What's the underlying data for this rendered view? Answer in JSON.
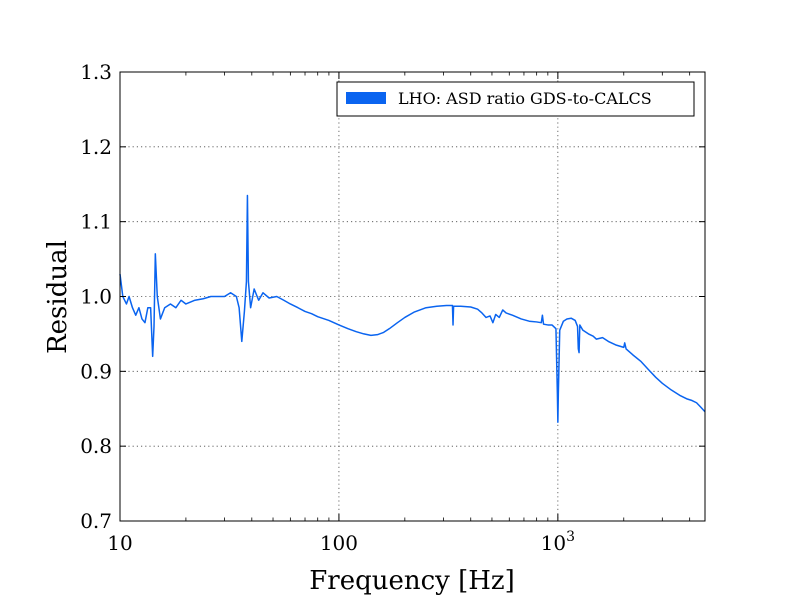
{
  "chart_data": {
    "type": "line",
    "title": "",
    "xlabel": "Frequency [Hz]",
    "ylabel": "Residual",
    "xscale": "log",
    "xlim": [
      10,
      4700
    ],
    "ylim": [
      0.7,
      1.3
    ],
    "grid": true,
    "legend_position": "top-right",
    "x_ticks": [
      {
        "value": 10,
        "label": "10",
        "sup": ""
      },
      {
        "value": 100,
        "label": "100",
        "sup": ""
      },
      {
        "value": 1000,
        "label": "10",
        "sup": "3"
      }
    ],
    "y_ticks": [
      {
        "value": 0.7,
        "label": "0.7"
      },
      {
        "value": 0.8,
        "label": "0.8"
      },
      {
        "value": 0.9,
        "label": "0.9"
      },
      {
        "value": 1.0,
        "label": "1.0"
      },
      {
        "value": 1.1,
        "label": "1.1"
      },
      {
        "value": 1.2,
        "label": "1.2"
      },
      {
        "value": 1.3,
        "label": "1.3"
      }
    ],
    "series": [
      {
        "name": "LHO: ASD ratio GDS-to-CALCS",
        "color": "#0a64f0",
        "points": [
          [
            10.0,
            1.03
          ],
          [
            10.3,
            1.0
          ],
          [
            10.7,
            0.99
          ],
          [
            11.0,
            1.0
          ],
          [
            11.4,
            0.985
          ],
          [
            11.8,
            0.975
          ],
          [
            12.2,
            0.985
          ],
          [
            12.6,
            0.97
          ],
          [
            13.0,
            0.965
          ],
          [
            13.4,
            0.985
          ],
          [
            13.8,
            0.985
          ],
          [
            14.1,
            0.92
          ],
          [
            14.3,
            0.96
          ],
          [
            14.5,
            1.057
          ],
          [
            14.8,
            1.0
          ],
          [
            15.3,
            0.97
          ],
          [
            16.0,
            0.985
          ],
          [
            17.0,
            0.99
          ],
          [
            18.0,
            0.985
          ],
          [
            19.0,
            0.995
          ],
          [
            20.0,
            0.99
          ],
          [
            22.0,
            0.995
          ],
          [
            24.0,
            0.997
          ],
          [
            26.0,
            1.0
          ],
          [
            28.0,
            1.0
          ],
          [
            30.0,
            1.0
          ],
          [
            32.0,
            1.005
          ],
          [
            34.0,
            1.0
          ],
          [
            35.0,
            0.985
          ],
          [
            36.0,
            0.94
          ],
          [
            37.0,
            0.98
          ],
          [
            37.8,
            1.02
          ],
          [
            38.2,
            1.135
          ],
          [
            38.6,
            1.02
          ],
          [
            39.5,
            0.985
          ],
          [
            41.0,
            1.01
          ],
          [
            43.0,
            0.995
          ],
          [
            45.0,
            1.005
          ],
          [
            48.0,
            0.998
          ],
          [
            52.0,
            1.0
          ],
          [
            56.0,
            0.995
          ],
          [
            60.0,
            0.99
          ],
          [
            65.0,
            0.985
          ],
          [
            70.0,
            0.98
          ],
          [
            75.0,
            0.977
          ],
          [
            80.0,
            0.973
          ],
          [
            90.0,
            0.968
          ],
          [
            100.0,
            0.962
          ],
          [
            110.0,
            0.957
          ],
          [
            120.0,
            0.953
          ],
          [
            130.0,
            0.95
          ],
          [
            140.0,
            0.948
          ],
          [
            150.0,
            0.949
          ],
          [
            160.0,
            0.952
          ],
          [
            170.0,
            0.957
          ],
          [
            185.0,
            0.965
          ],
          [
            200.0,
            0.972
          ],
          [
            220.0,
            0.979
          ],
          [
            250.0,
            0.985
          ],
          [
            280.0,
            0.987
          ],
          [
            310.0,
            0.988
          ],
          [
            330.0,
            0.988
          ],
          [
            332.0,
            0.962
          ],
          [
            334.0,
            0.987
          ],
          [
            360.0,
            0.987
          ],
          [
            400.0,
            0.986
          ],
          [
            430.0,
            0.983
          ],
          [
            450.0,
            0.978
          ],
          [
            470.0,
            0.972
          ],
          [
            490.0,
            0.974
          ],
          [
            505.0,
            0.965
          ],
          [
            520.0,
            0.976
          ],
          [
            540.0,
            0.972
          ],
          [
            560.0,
            0.982
          ],
          [
            580.0,
            0.978
          ],
          [
            620.0,
            0.975
          ],
          [
            680.0,
            0.97
          ],
          [
            740.0,
            0.967
          ],
          [
            800.0,
            0.966
          ],
          [
            840.0,
            0.965
          ],
          [
            850.0,
            0.975
          ],
          [
            860.0,
            0.963
          ],
          [
            900.0,
            0.962
          ],
          [
            940.0,
            0.962
          ],
          [
            980.0,
            0.957
          ],
          [
            995.0,
            0.87
          ],
          [
            1000.0,
            0.832
          ],
          [
            1005.0,
            0.87
          ],
          [
            1020.0,
            0.955
          ],
          [
            1060.0,
            0.967
          ],
          [
            1100.0,
            0.97
          ],
          [
            1150.0,
            0.971
          ],
          [
            1200.0,
            0.968
          ],
          [
            1230.0,
            0.96
          ],
          [
            1240.0,
            0.93
          ],
          [
            1250.0,
            0.925
          ],
          [
            1260.0,
            0.962
          ],
          [
            1300.0,
            0.955
          ],
          [
            1380.0,
            0.95
          ],
          [
            1450.0,
            0.947
          ],
          [
            1500.0,
            0.943
          ],
          [
            1600.0,
            0.945
          ],
          [
            1700.0,
            0.94
          ],
          [
            1850.0,
            0.935
          ],
          [
            2000.0,
            0.932
          ],
          [
            2020.0,
            0.938
          ],
          [
            2050.0,
            0.93
          ],
          [
            2200.0,
            0.922
          ],
          [
            2400.0,
            0.913
          ],
          [
            2600.0,
            0.902
          ],
          [
            2800.0,
            0.892
          ],
          [
            3000.0,
            0.884
          ],
          [
            3300.0,
            0.875
          ],
          [
            3600.0,
            0.868
          ],
          [
            3900.0,
            0.863
          ],
          [
            4100.0,
            0.861
          ],
          [
            4300.0,
            0.858
          ],
          [
            4500.0,
            0.852
          ],
          [
            4700.0,
            0.846
          ]
        ]
      }
    ]
  }
}
